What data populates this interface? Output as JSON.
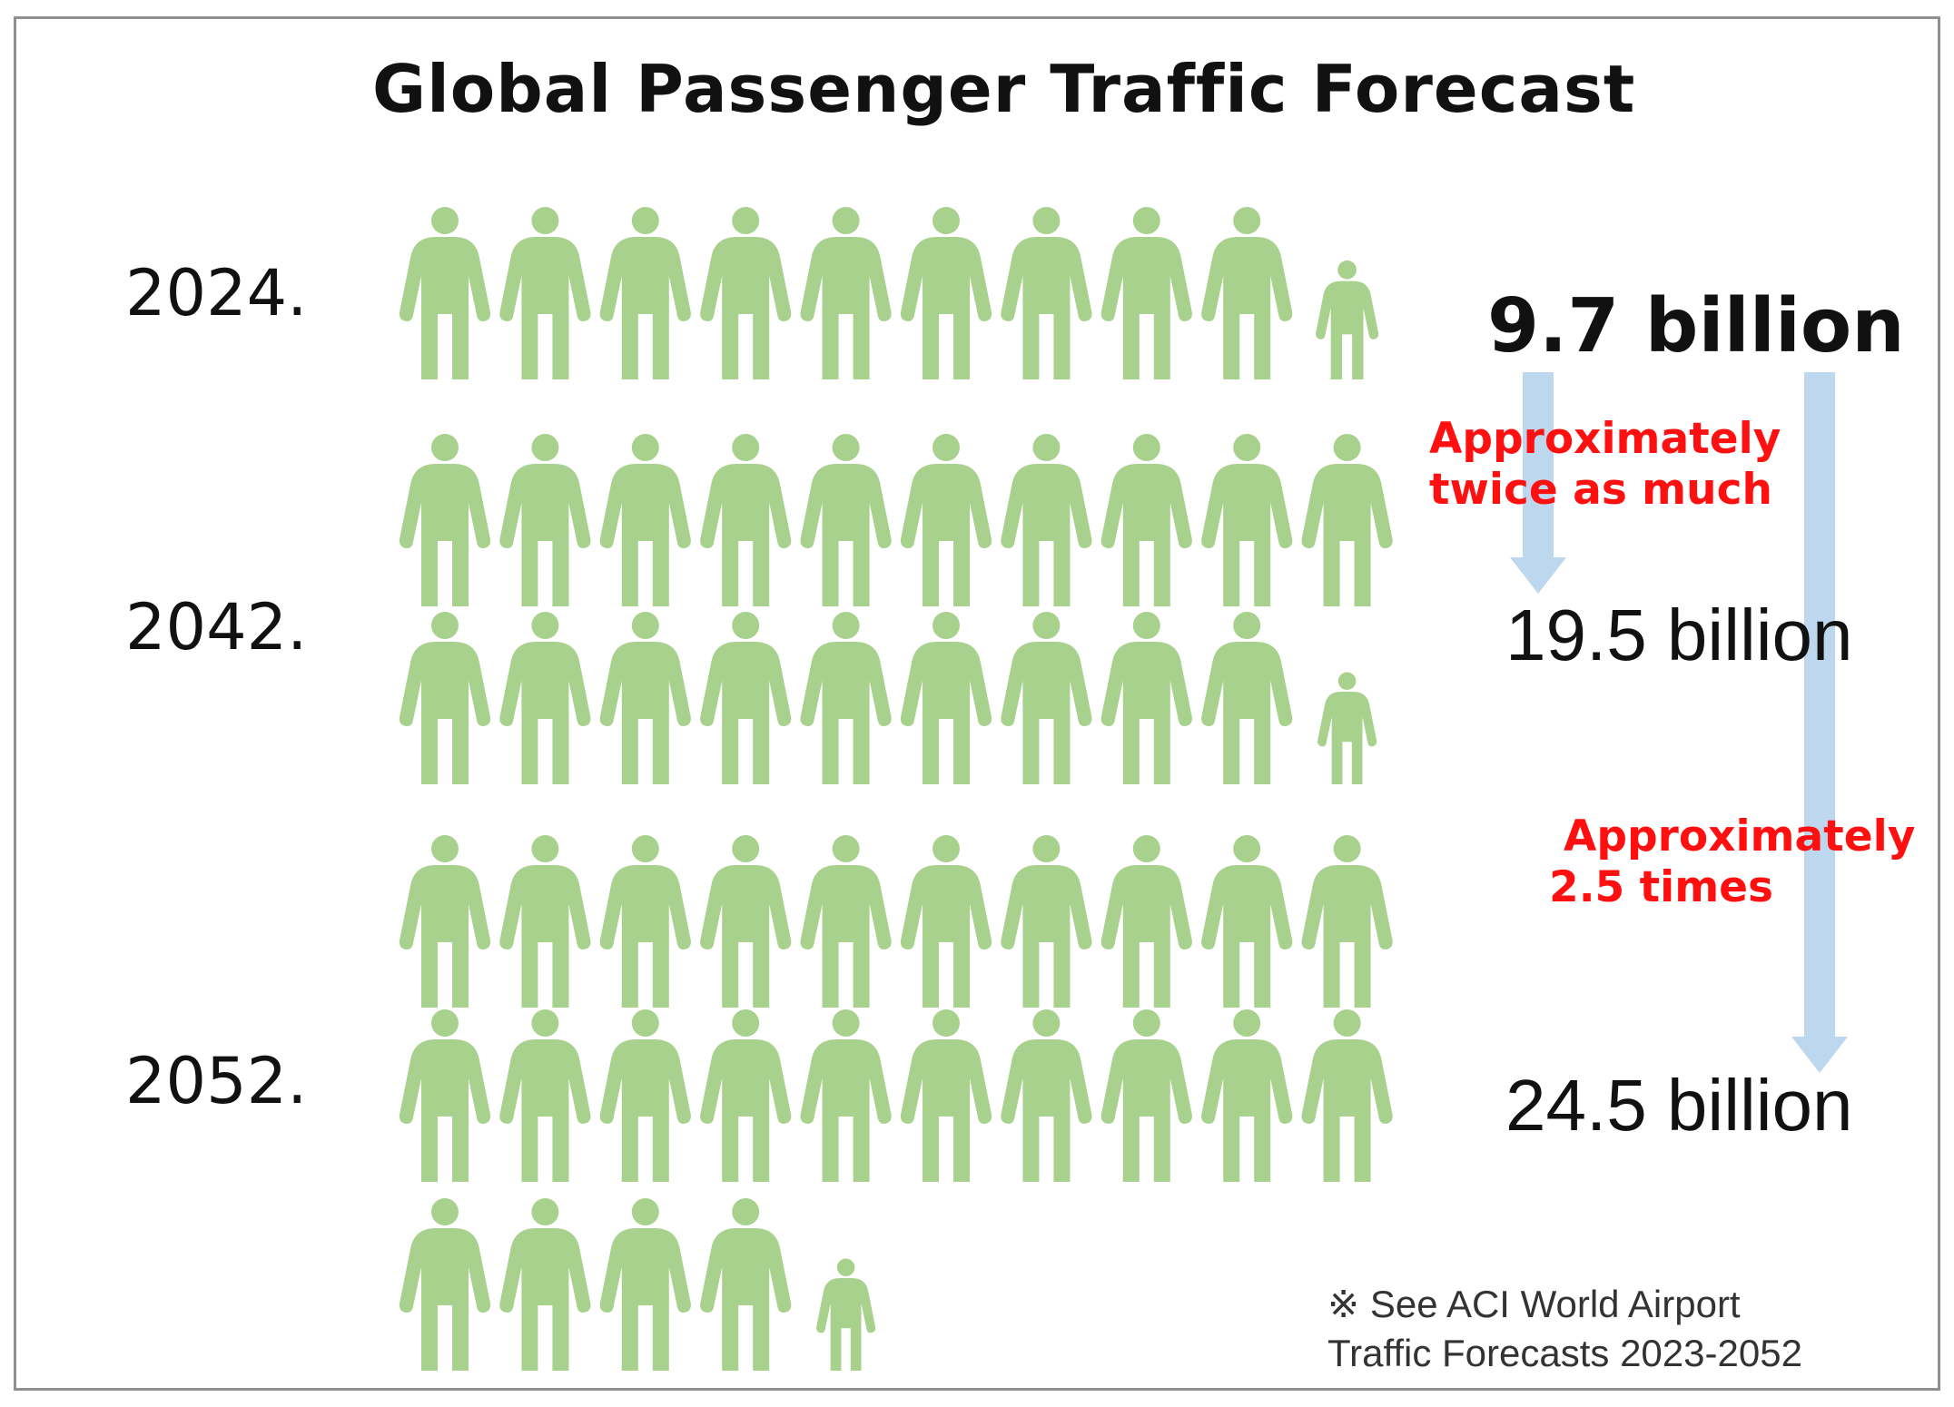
{
  "chart_data": {
    "type": "pictogram",
    "title": "Global Passenger Traffic Forecast",
    "unit": "billion",
    "icon": "person-icon",
    "icon_value": 1,
    "icon_color": "#a9d18e",
    "arrow_color": "#bdd7ee",
    "annotation_color": "#ff0000",
    "rows": [
      {
        "year": "2024.",
        "value": 9.7,
        "label": "9.7 billion"
      },
      {
        "year": "2042.",
        "value": 19.5,
        "label": "19.5 billion"
      },
      {
        "year": "2052.",
        "value": 24.5,
        "label": "24.5 billion"
      }
    ],
    "comparisons": [
      {
        "from": "2024.",
        "to": "2042.",
        "text_line1": "Approximately",
        "text_line2": "twice as much"
      },
      {
        "from": "2024.",
        "to": "2052.",
        "text_line1": "Approximately",
        "text_line2": "2.5 times"
      }
    ],
    "footnote": {
      "line1": "※ See ACI World Airport",
      "line2": "Traffic Forecasts 2023-2052"
    }
  }
}
